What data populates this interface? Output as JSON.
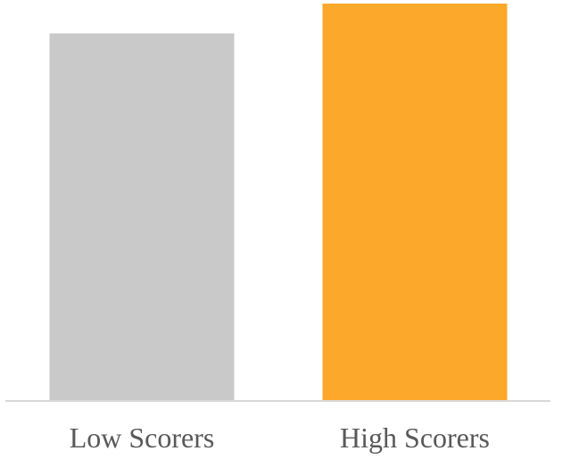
{
  "chart_data": {
    "type": "bar",
    "categories": [
      "Low Scorers",
      "High Scorers"
    ],
    "values": [
      92.5,
      100
    ],
    "colors": [
      "#c9c9c9",
      "#fca82a"
    ],
    "axis_line_color": "#d9d9d9",
    "ylim": [
      0,
      100
    ],
    "y_axis_visible": false,
    "grid": false,
    "legend": "none"
  }
}
